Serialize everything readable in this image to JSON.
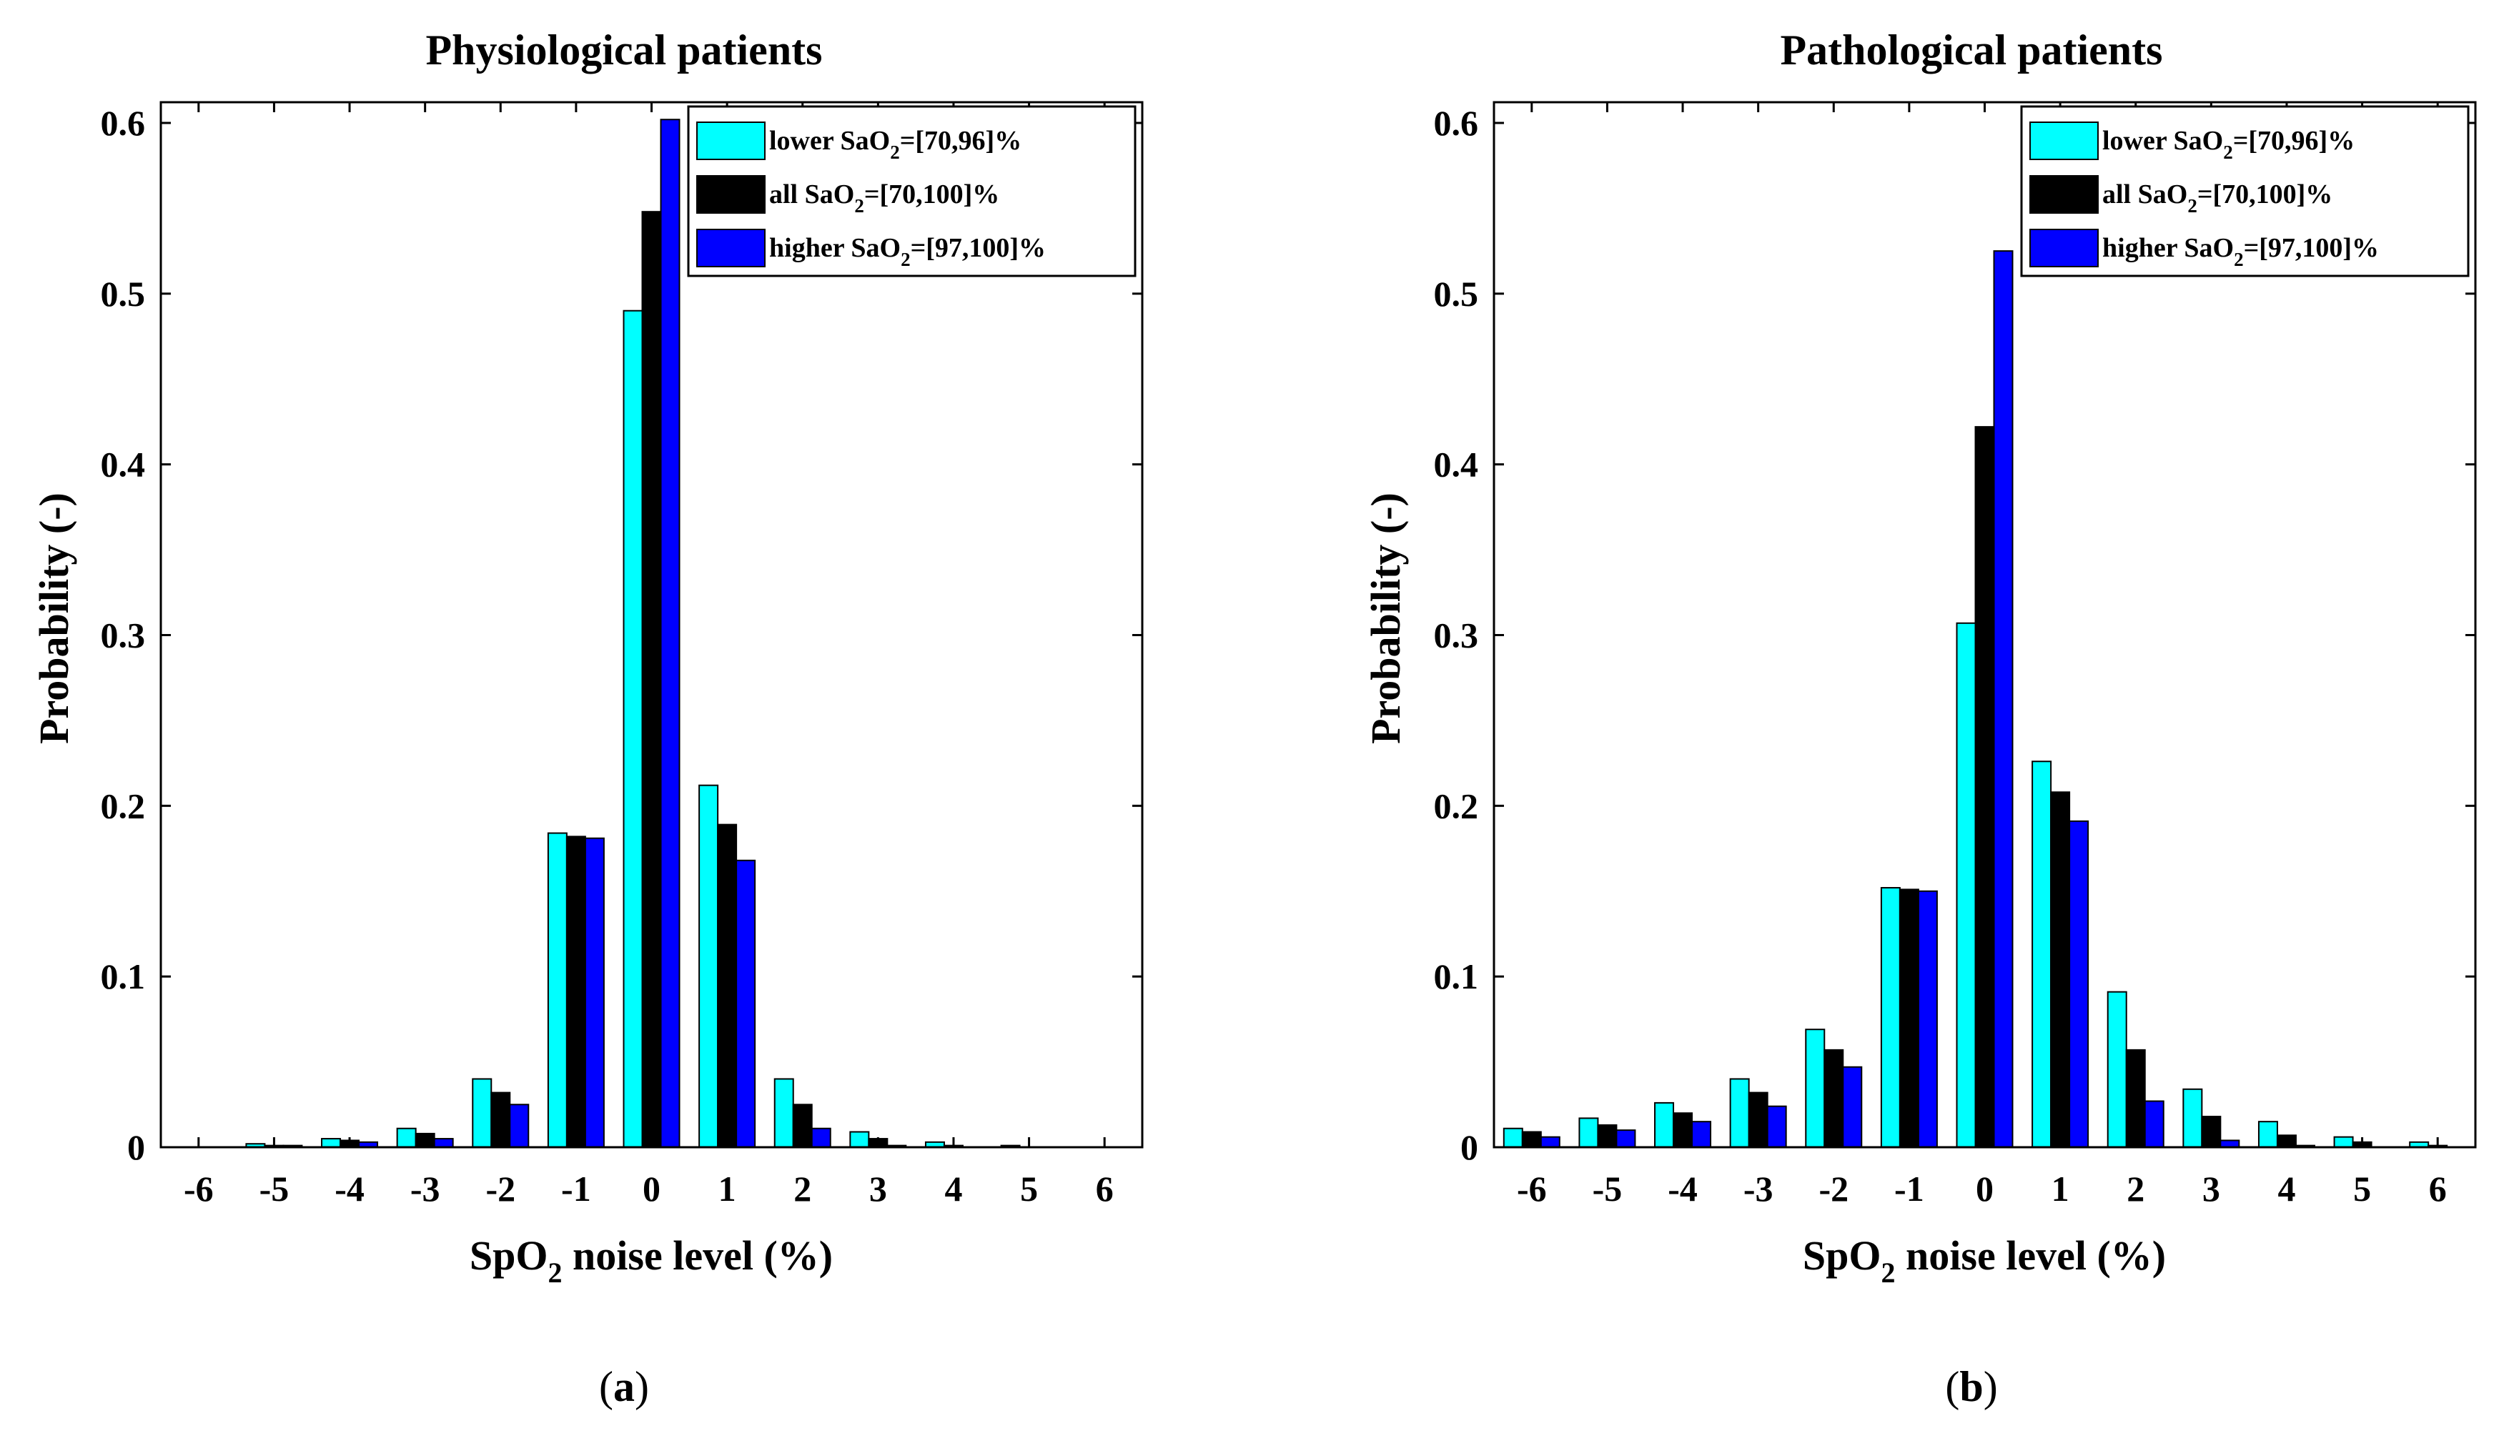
{
  "chart_data": [
    {
      "type": "bar",
      "panel_label": "a",
      "title": "Physiological patients",
      "ylabel": "Probability (-)",
      "xlabel": {
        "pre": "SpO",
        "sub": "2",
        "post": " noise level (%)"
      },
      "categories": [
        "-6",
        "-5",
        "-4",
        "-3",
        "-2",
        "-1",
        "0",
        "1",
        "2",
        "3",
        "4",
        "5",
        "6"
      ],
      "ylim": [
        0,
        0.6
      ],
      "yticks": [
        "0",
        "0.1",
        "0.2",
        "0.3",
        "0.4",
        "0.5",
        "0.6"
      ],
      "legend_position": "top-right",
      "series": [
        {
          "legend": {
            "pre": "lower SaO",
            "sub": "2",
            "post": "=[70,96]%"
          },
          "color": "#00ffff",
          "values": [
            0.0,
            0.002,
            0.005,
            0.011,
            0.04,
            0.184,
            0.49,
            0.212,
            0.04,
            0.009,
            0.003,
            0.001,
            0.0
          ]
        },
        {
          "legend": {
            "pre": "all SaO",
            "sub": "2",
            "post": "=[70,100]%"
          },
          "color": "#000000",
          "values": [
            0.0,
            0.001,
            0.004,
            0.008,
            0.032,
            0.182,
            0.548,
            0.189,
            0.025,
            0.005,
            0.001,
            0.0,
            0.0
          ]
        },
        {
          "legend": {
            "pre": "higher SaO",
            "sub": "2",
            "post": "=[97,100]%"
          },
          "color": "#0000ff",
          "values": [
            0.0,
            0.001,
            0.003,
            0.005,
            0.025,
            0.181,
            0.602,
            0.168,
            0.011,
            0.001,
            0.0,
            0.0,
            0.0
          ]
        }
      ]
    },
    {
      "type": "bar",
      "panel_label": "b",
      "title": "Pathological patients",
      "ylabel": "Probability (-)",
      "xlabel": {
        "pre": "SpO",
        "sub": "2",
        "post": " noise level (%)"
      },
      "categories": [
        "-6",
        "-5",
        "-4",
        "-3",
        "-2",
        "-1",
        "0",
        "1",
        "2",
        "3",
        "4",
        "5",
        "6"
      ],
      "ylim": [
        0,
        0.6
      ],
      "yticks": [
        "0",
        "0.1",
        "0.2",
        "0.3",
        "0.4",
        "0.5",
        "0.6"
      ],
      "legend_position": "top-right",
      "series": [
        {
          "legend": {
            "pre": "lower SaO",
            "sub": "2",
            "post": "=[70,96]%"
          },
          "color": "#00ffff",
          "values": [
            0.011,
            0.017,
            0.026,
            0.04,
            0.069,
            0.152,
            0.307,
            0.226,
            0.091,
            0.034,
            0.015,
            0.006,
            0.003
          ]
        },
        {
          "legend": {
            "pre": "all SaO",
            "sub": "2",
            "post": "=[70,100]%"
          },
          "color": "#000000",
          "values": [
            0.009,
            0.013,
            0.02,
            0.032,
            0.057,
            0.151,
            0.422,
            0.208,
            0.057,
            0.018,
            0.007,
            0.003,
            0.001
          ]
        },
        {
          "legend": {
            "pre": "higher SaO",
            "sub": "2",
            "post": "=[97,100]%"
          },
          "color": "#0000ff",
          "values": [
            0.006,
            0.01,
            0.015,
            0.024,
            0.047,
            0.15,
            0.525,
            0.191,
            0.027,
            0.004,
            0.001,
            0.0,
            0.0
          ]
        }
      ]
    }
  ]
}
